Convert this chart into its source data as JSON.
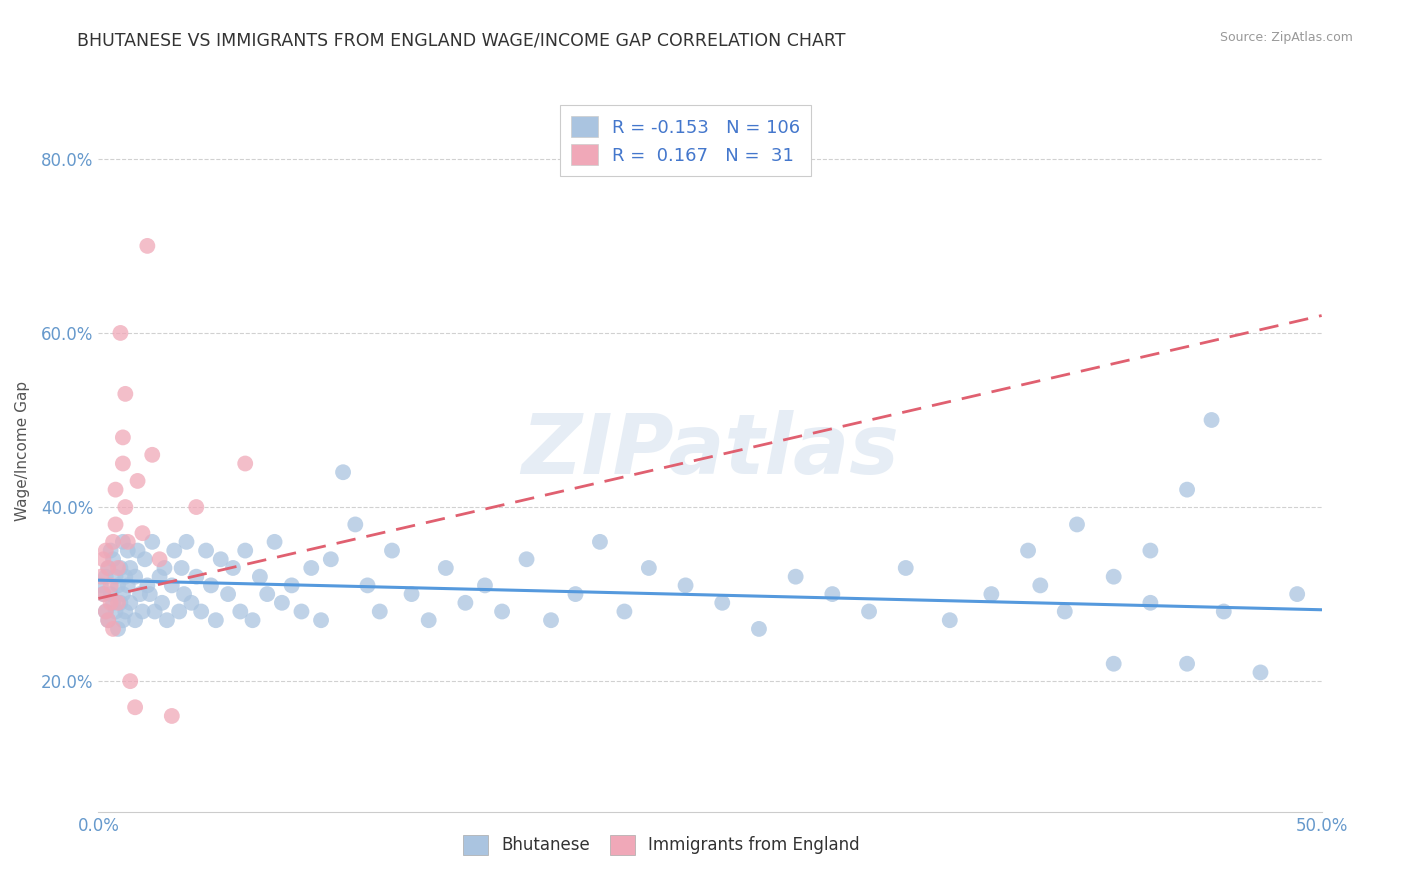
{
  "title": "BHUTANESE VS IMMIGRANTS FROM ENGLAND WAGE/INCOME GAP CORRELATION CHART",
  "source": "Source: ZipAtlas.com",
  "ylabel": "Wage/Income Gap",
  "xlim": [
    0.0,
    0.5
  ],
  "ylim": [
    0.05,
    0.88
  ],
  "blue_color": "#aac4e0",
  "pink_color": "#f0a8b8",
  "blue_line_color": "#5599dd",
  "pink_line_color": "#e06070",
  "watermark": "ZIPatlas",
  "legend_R_blue": "-0.153",
  "legend_N_blue": "106",
  "legend_R_pink": "0.167",
  "legend_N_pink": "31",
  "background_color": "#ffffff",
  "grid_color": "#cccccc",
  "tick_label_color": "#6699cc",
  "blue_x": [
    0.001,
    0.002,
    0.003,
    0.003,
    0.004,
    0.004,
    0.005,
    0.005,
    0.006,
    0.006,
    0.007,
    0.007,
    0.008,
    0.008,
    0.009,
    0.009,
    0.01,
    0.01,
    0.01,
    0.011,
    0.011,
    0.012,
    0.012,
    0.013,
    0.013,
    0.015,
    0.015,
    0.016,
    0.017,
    0.018,
    0.019,
    0.02,
    0.021,
    0.022,
    0.023,
    0.025,
    0.026,
    0.027,
    0.028,
    0.03,
    0.031,
    0.033,
    0.034,
    0.035,
    0.036,
    0.038,
    0.04,
    0.042,
    0.044,
    0.046,
    0.048,
    0.05,
    0.053,
    0.055,
    0.058,
    0.06,
    0.063,
    0.066,
    0.069,
    0.072,
    0.075,
    0.079,
    0.083,
    0.087,
    0.091,
    0.095,
    0.1,
    0.105,
    0.11,
    0.115,
    0.12,
    0.128,
    0.135,
    0.142,
    0.15,
    0.158,
    0.165,
    0.175,
    0.185,
    0.195,
    0.205,
    0.215,
    0.225,
    0.24,
    0.255,
    0.27,
    0.285,
    0.3,
    0.315,
    0.33,
    0.348,
    0.365,
    0.38,
    0.395,
    0.415,
    0.43,
    0.445,
    0.46,
    0.475,
    0.49,
    0.455,
    0.445,
    0.43,
    0.415,
    0.4,
    0.385
  ],
  "blue_y": [
    0.31,
    0.3,
    0.32,
    0.28,
    0.33,
    0.27,
    0.3,
    0.35,
    0.29,
    0.34,
    0.28,
    0.32,
    0.31,
    0.26,
    0.33,
    0.29,
    0.3,
    0.36,
    0.27,
    0.32,
    0.28,
    0.31,
    0.35,
    0.29,
    0.33,
    0.32,
    0.27,
    0.35,
    0.3,
    0.28,
    0.34,
    0.31,
    0.3,
    0.36,
    0.28,
    0.32,
    0.29,
    0.33,
    0.27,
    0.31,
    0.35,
    0.28,
    0.33,
    0.3,
    0.36,
    0.29,
    0.32,
    0.28,
    0.35,
    0.31,
    0.27,
    0.34,
    0.3,
    0.33,
    0.28,
    0.35,
    0.27,
    0.32,
    0.3,
    0.36,
    0.29,
    0.31,
    0.28,
    0.33,
    0.27,
    0.34,
    0.44,
    0.38,
    0.31,
    0.28,
    0.35,
    0.3,
    0.27,
    0.33,
    0.29,
    0.31,
    0.28,
    0.34,
    0.27,
    0.3,
    0.36,
    0.28,
    0.33,
    0.31,
    0.29,
    0.26,
    0.32,
    0.3,
    0.28,
    0.33,
    0.27,
    0.3,
    0.35,
    0.28,
    0.32,
    0.29,
    0.22,
    0.28,
    0.21,
    0.3,
    0.5,
    0.42,
    0.35,
    0.22,
    0.38,
    0.31
  ],
  "pink_x": [
    0.001,
    0.002,
    0.002,
    0.003,
    0.003,
    0.004,
    0.004,
    0.005,
    0.005,
    0.006,
    0.006,
    0.007,
    0.007,
    0.008,
    0.008,
    0.009,
    0.01,
    0.01,
    0.011,
    0.011,
    0.012,
    0.013,
    0.015,
    0.016,
    0.018,
    0.02,
    0.022,
    0.025,
    0.03,
    0.04,
    0.06
  ],
  "pink_y": [
    0.32,
    0.3,
    0.34,
    0.28,
    0.35,
    0.27,
    0.33,
    0.31,
    0.29,
    0.36,
    0.26,
    0.42,
    0.38,
    0.33,
    0.29,
    0.6,
    0.45,
    0.48,
    0.53,
    0.4,
    0.36,
    0.2,
    0.17,
    0.43,
    0.37,
    0.7,
    0.46,
    0.34,
    0.16,
    0.4,
    0.45
  ],
  "blue_line_x": [
    0.0,
    0.5
  ],
  "blue_line_y": [
    0.316,
    0.282
  ],
  "pink_line_x": [
    0.0,
    0.5
  ],
  "pink_line_y": [
    0.295,
    0.62
  ]
}
